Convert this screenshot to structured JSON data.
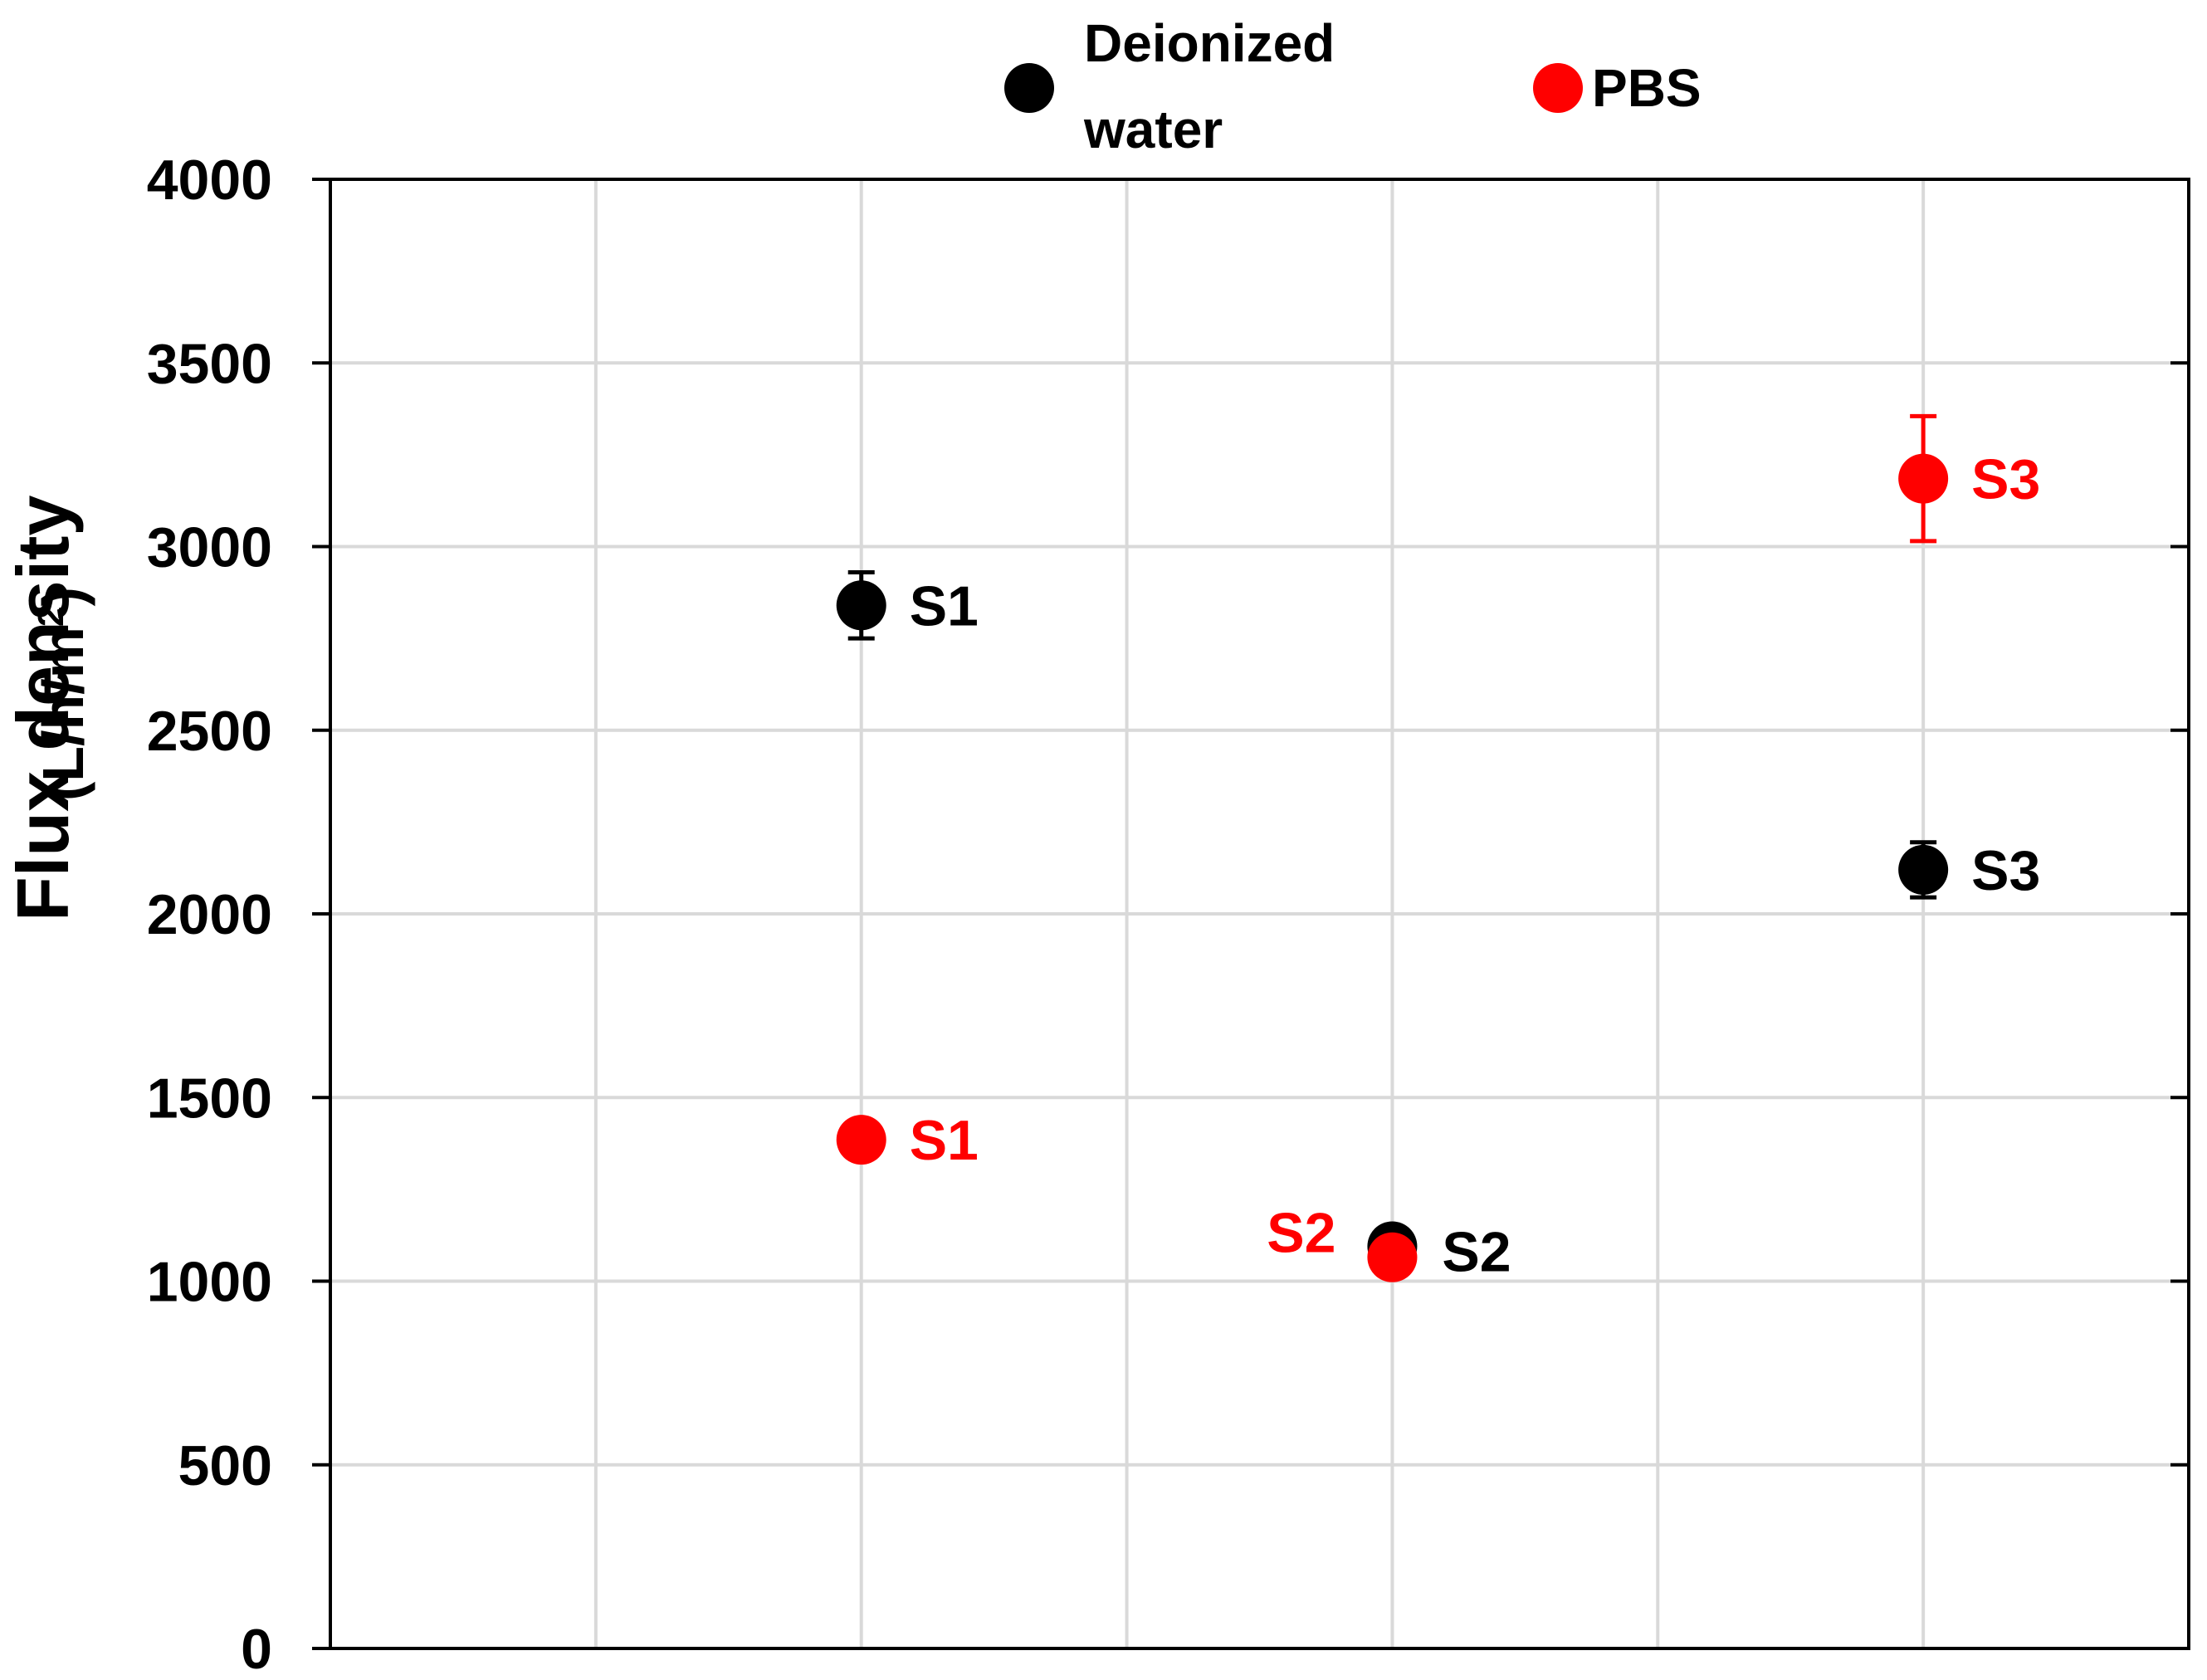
{
  "chart_data": {
    "type": "scatter",
    "title": "",
    "xlabel": "",
    "ylabel": "Flux density",
    "ylabel_unit_base": "(L/h/m",
    "ylabel_unit_sup": "2",
    "ylabel_unit_close": ")",
    "xlim": [
      0,
      7
    ],
    "ylim": [
      0,
      4000
    ],
    "yticks": [
      0,
      500,
      1000,
      1500,
      2000,
      2500,
      3000,
      3500,
      4000
    ],
    "ytick_labels": [
      "0",
      "500",
      "1000",
      "1500",
      "2000",
      "2500",
      "3000",
      "3500",
      "4000"
    ],
    "xgrid": [
      1,
      2,
      3,
      4,
      5,
      6
    ],
    "grid": true,
    "legend_position": "top-center",
    "legend": [
      {
        "label_line1": "Deionized",
        "label_line2": "water",
        "color": "#000000"
      },
      {
        "label_line1": "PBS",
        "label_line2": "",
        "color": "#ff0000"
      }
    ],
    "series": [
      {
        "name": "Deionized water",
        "color": "#000000",
        "points": [
          {
            "x": 2,
            "y": 2840,
            "err": 90,
            "label": "S1"
          },
          {
            "x": 4,
            "y": 1095,
            "err": 0,
            "label": "S2"
          },
          {
            "x": 6,
            "y": 2120,
            "err": 75,
            "label": "S3"
          }
        ]
      },
      {
        "name": "PBS",
        "color": "#ff0000",
        "points": [
          {
            "x": 2,
            "y": 1385,
            "err": 0,
            "label": "S1"
          },
          {
            "x": 4,
            "y": 1065,
            "err": 0,
            "label": "S2"
          },
          {
            "x": 6,
            "y": 3185,
            "err": 170,
            "label": "S3"
          }
        ]
      }
    ]
  }
}
